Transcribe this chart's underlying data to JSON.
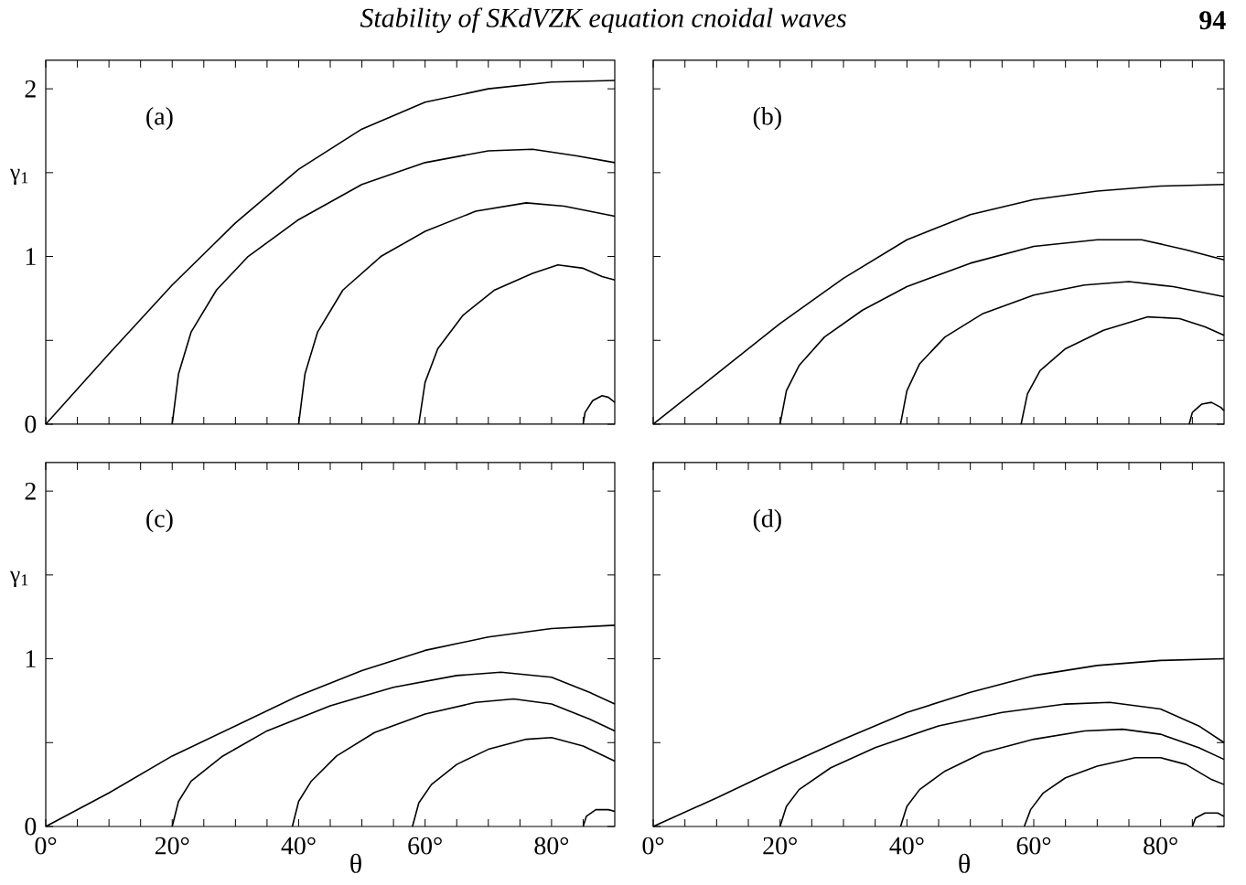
{
  "chart_data": [
    {
      "type": "line",
      "annotations": [
        "(a)",
        "Stability of SKdVZK equation cnoidal waves",
        "94"
      ],
      "ylabel": "γ$_{1}$",
      "xlim": [
        0,
        90
      ],
      "ylim": [
        0,
        2.17
      ],
      "tick_labels": "y",
      "marker": "none",
      "line_style": "solid",
      "xticks": [
        {
          "value": 0,
          "label": null
        },
        {
          "value": 5,
          "label": null
        },
        {
          "value": 10,
          "label": null
        },
        {
          "value": 15,
          "label": null
        },
        {
          "value": 20,
          "label": null
        },
        {
          "value": 25,
          "label": null
        },
        {
          "value": 30,
          "label": null
        },
        {
          "value": 35,
          "label": null
        },
        {
          "value": 40,
          "label": null
        },
        {
          "value": 45,
          "label": null
        },
        {
          "value": 50,
          "label": null
        },
        {
          "value": 55,
          "label": null
        },
        {
          "value": 60,
          "label": null
        },
        {
          "value": 65,
          "label": null
        },
        {
          "value": 70,
          "label": null
        },
        {
          "value": 75,
          "label": null
        },
        {
          "value": 80,
          "label": null
        },
        {
          "value": 85,
          "label": null
        }
      ],
      "yticks": [
        0,
        {
          "value": 0.5,
          "label": null
        },
        1,
        {
          "value": 1.5,
          "label": null
        },
        2
      ],
      "series": [
        {
          "color": "#000000",
          "x": [
            0,
            10,
            20,
            30,
            40,
            50,
            60,
            70,
            80,
            90
          ],
          "values": [
            0,
            0.42,
            0.83,
            1.2,
            1.52,
            1.76,
            1.92,
            2.0,
            2.04,
            2.05
          ]
        },
        {
          "color": "#000000",
          "x": [
            20,
            21,
            23,
            27,
            32,
            40,
            50,
            60,
            70,
            77,
            84,
            90
          ],
          "values": [
            0,
            0.3,
            0.55,
            0.8,
            1.0,
            1.22,
            1.43,
            1.56,
            1.63,
            1.64,
            1.6,
            1.56
          ]
        },
        {
          "color": "#000000",
          "x": [
            40,
            41,
            43,
            47,
            53,
            60,
            68,
            76,
            82,
            86,
            90
          ],
          "values": [
            0,
            0.3,
            0.55,
            0.8,
            1.0,
            1.15,
            1.27,
            1.32,
            1.3,
            1.27,
            1.24
          ]
        },
        {
          "color": "#000000",
          "x": [
            59,
            60,
            62,
            66,
            71,
            77,
            81,
            85,
            88,
            90
          ],
          "values": [
            0,
            0.25,
            0.45,
            0.65,
            0.8,
            0.9,
            0.95,
            0.93,
            0.88,
            0.86
          ]
        },
        {
          "color": "#000000",
          "x": [
            85,
            85.3,
            86.5,
            88,
            89,
            90
          ],
          "values": [
            0,
            0.07,
            0.14,
            0.17,
            0.16,
            0.13
          ]
        }
      ]
    },
    {
      "type": "line",
      "annotations": [
        "(b)"
      ],
      "xlim": [
        0,
        90
      ],
      "ylim": [
        0,
        2.17
      ],
      "tick_labels": false,
      "marker": "none",
      "line_style": "solid",
      "xticks": [
        {
          "value": 0,
          "label": null
        },
        {
          "value": 5,
          "label": null
        },
        {
          "value": 10,
          "label": null
        },
        {
          "value": 15,
          "label": null
        },
        {
          "value": 20,
          "label": null
        },
        {
          "value": 25,
          "label": null
        },
        {
          "value": 30,
          "label": null
        },
        {
          "value": 35,
          "label": null
        },
        {
          "value": 40,
          "label": null
        },
        {
          "value": 45,
          "label": null
        },
        {
          "value": 50,
          "label": null
        },
        {
          "value": 55,
          "label": null
        },
        {
          "value": 60,
          "label": null
        },
        {
          "value": 65,
          "label": null
        },
        {
          "value": 70,
          "label": null
        },
        {
          "value": 75,
          "label": null
        },
        {
          "value": 80,
          "label": null
        },
        {
          "value": 85,
          "label": null
        }
      ],
      "yticks": [
        {
          "value": 0,
          "label": null
        },
        {
          "value": 0.5,
          "label": null
        },
        {
          "value": 1,
          "label": null
        },
        {
          "value": 1.5,
          "label": null
        },
        {
          "value": 2,
          "label": null
        }
      ],
      "series": [
        {
          "color": "#000000",
          "x": [
            0,
            10,
            20,
            30,
            40,
            50,
            60,
            70,
            80,
            90
          ],
          "values": [
            0,
            0.3,
            0.6,
            0.87,
            1.1,
            1.25,
            1.34,
            1.39,
            1.42,
            1.43
          ]
        },
        {
          "color": "#000000",
          "x": [
            20,
            21,
            23,
            27,
            33,
            40,
            50,
            60,
            70,
            77,
            84,
            90
          ],
          "values": [
            0,
            0.2,
            0.35,
            0.52,
            0.68,
            0.82,
            0.96,
            1.06,
            1.1,
            1.1,
            1.04,
            0.98
          ]
        },
        {
          "color": "#000000",
          "x": [
            39,
            40,
            42,
            46,
            52,
            60,
            68,
            75,
            82,
            86,
            90
          ],
          "values": [
            0,
            0.2,
            0.36,
            0.52,
            0.66,
            0.77,
            0.83,
            0.85,
            0.82,
            0.79,
            0.76
          ]
        },
        {
          "color": "#000000",
          "x": [
            58,
            59,
            61,
            65,
            71,
            78,
            83,
            87,
            90
          ],
          "values": [
            0,
            0.18,
            0.32,
            0.45,
            0.56,
            0.64,
            0.63,
            0.58,
            0.53
          ]
        },
        {
          "color": "#000000",
          "x": [
            84.5,
            85,
            86.5,
            88,
            89.5,
            90
          ],
          "values": [
            0,
            0.07,
            0.12,
            0.13,
            0.1,
            0.08
          ]
        }
      ]
    },
    {
      "type": "line",
      "annotations": [
        "(c)"
      ],
      "xlabel": "θ",
      "ylabel": "γ$_{1}$",
      "xlim": [
        0,
        90
      ],
      "ylim": [
        0,
        2.17
      ],
      "marker": "none",
      "line_style": "solid",
      "xticks": [
        {
          "value": 0,
          "label": "0°"
        },
        {
          "value": 5,
          "label": null
        },
        {
          "value": 10,
          "label": null
        },
        {
          "value": 15,
          "label": null
        },
        {
          "value": 20,
          "label": "20°"
        },
        {
          "value": 25,
          "label": null
        },
        {
          "value": 30,
          "label": null
        },
        {
          "value": 35,
          "label": null
        },
        {
          "value": 40,
          "label": "40°"
        },
        {
          "value": 45,
          "label": null
        },
        {
          "value": 50,
          "label": null
        },
        {
          "value": 55,
          "label": null
        },
        {
          "value": 60,
          "label": "60°"
        },
        {
          "value": 65,
          "label": null
        },
        {
          "value": 70,
          "label": null
        },
        {
          "value": 75,
          "label": null
        },
        {
          "value": 80,
          "label": "80°"
        },
        {
          "value": 85,
          "label": null
        }
      ],
      "yticks": [
        0,
        {
          "value": 0.5,
          "label": null
        },
        1,
        {
          "value": 1.5,
          "label": null
        },
        2
      ],
      "series": [
        {
          "color": "#000000",
          "x": [
            0,
            10,
            20,
            30,
            40,
            50,
            60,
            70,
            80,
            90
          ],
          "values": [
            0,
            0.2,
            0.42,
            0.6,
            0.78,
            0.93,
            1.05,
            1.13,
            1.18,
            1.2
          ]
        },
        {
          "color": "#000000",
          "x": [
            20,
            21,
            23,
            28,
            35,
            45,
            55,
            65,
            72,
            80,
            86,
            90
          ],
          "values": [
            0,
            0.15,
            0.27,
            0.42,
            0.57,
            0.72,
            0.83,
            0.9,
            0.92,
            0.89,
            0.8,
            0.73
          ]
        },
        {
          "color": "#000000",
          "x": [
            39,
            40,
            42,
            46,
            52,
            60,
            68,
            74,
            80,
            86,
            90
          ],
          "values": [
            0,
            0.15,
            0.27,
            0.42,
            0.56,
            0.67,
            0.74,
            0.76,
            0.73,
            0.64,
            0.57
          ]
        },
        {
          "color": "#000000",
          "x": [
            58,
            59,
            61,
            65,
            70,
            76,
            80,
            85,
            90
          ],
          "values": [
            0,
            0.14,
            0.25,
            0.37,
            0.46,
            0.52,
            0.53,
            0.48,
            0.39
          ]
        },
        {
          "color": "#000000",
          "x": [
            85,
            85.5,
            87,
            89,
            90
          ],
          "values": [
            0,
            0.06,
            0.1,
            0.1,
            0.09
          ]
        }
      ]
    },
    {
      "type": "line",
      "annotations": [
        "(d)"
      ],
      "xlabel": "θ",
      "xlim": [
        0,
        90
      ],
      "ylim": [
        0,
        2.17
      ],
      "tick_labels": "x",
      "marker": "none",
      "line_style": "solid",
      "xticks": [
        {
          "value": 0,
          "label": "0°"
        },
        {
          "value": 5,
          "label": null
        },
        {
          "value": 10,
          "label": null
        },
        {
          "value": 15,
          "label": null
        },
        {
          "value": 20,
          "label": "20°"
        },
        {
          "value": 25,
          "label": null
        },
        {
          "value": 30,
          "label": null
        },
        {
          "value": 35,
          "label": null
        },
        {
          "value": 40,
          "label": "40°"
        },
        {
          "value": 45,
          "label": null
        },
        {
          "value": 50,
          "label": null
        },
        {
          "value": 55,
          "label": null
        },
        {
          "value": 60,
          "label": "60°"
        },
        {
          "value": 65,
          "label": null
        },
        {
          "value": 70,
          "label": null
        },
        {
          "value": 75,
          "label": null
        },
        {
          "value": 80,
          "label": "80°"
        },
        {
          "value": 85,
          "label": null
        }
      ],
      "yticks": [
        {
          "value": 0,
          "label": null
        },
        {
          "value": 0.5,
          "label": null
        },
        {
          "value": 1,
          "label": null
        },
        {
          "value": 1.5,
          "label": null
        },
        {
          "value": 2,
          "label": null
        }
      ],
      "series": [
        {
          "color": "#000000",
          "x": [
            0,
            10,
            20,
            30,
            40,
            50,
            60,
            70,
            80,
            90
          ],
          "values": [
            0,
            0.17,
            0.35,
            0.52,
            0.68,
            0.8,
            0.9,
            0.96,
            0.99,
            1.0
          ]
        },
        {
          "color": "#000000",
          "x": [
            20,
            21,
            23,
            28,
            35,
            45,
            55,
            65,
            72,
            80,
            86,
            90
          ],
          "values": [
            0,
            0.12,
            0.22,
            0.35,
            0.47,
            0.6,
            0.68,
            0.73,
            0.74,
            0.7,
            0.6,
            0.5
          ]
        },
        {
          "color": "#000000",
          "x": [
            39,
            40,
            42,
            46,
            52,
            60,
            68,
            74,
            80,
            86,
            90
          ],
          "values": [
            0,
            0.12,
            0.22,
            0.33,
            0.44,
            0.52,
            0.57,
            0.58,
            0.55,
            0.47,
            0.4
          ]
        },
        {
          "color": "#000000",
          "x": [
            58.5,
            59.5,
            61.5,
            65,
            70,
            76,
            80,
            84,
            88,
            90
          ],
          "values": [
            0,
            0.1,
            0.2,
            0.29,
            0.36,
            0.41,
            0.41,
            0.37,
            0.28,
            0.25
          ]
        },
        {
          "color": "#000000",
          "x": [
            85,
            85.5,
            87,
            89,
            90
          ],
          "values": [
            0,
            0.05,
            0.08,
            0.08,
            0.06
          ]
        }
      ]
    }
  ]
}
